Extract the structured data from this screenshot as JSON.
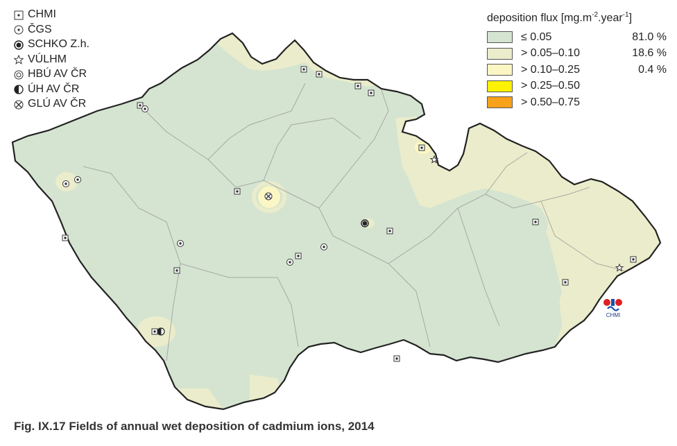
{
  "station_legend": [
    {
      "label": "CHMI",
      "icon": "square-dot-icon"
    },
    {
      "label": "ČGS",
      "icon": "circle-dot-icon"
    },
    {
      "label": "SCHKO Z.h.",
      "icon": "filled-circle-icon"
    },
    {
      "label": "VÚLHM",
      "icon": "star-icon"
    },
    {
      "label": "HBÚ AV ČR",
      "icon": "double-circle-icon"
    },
    {
      "label": "ÚH AV ČR",
      "icon": "half-circle-icon"
    },
    {
      "label": "GLÚ AV ČR",
      "icon": "crossed-circle-icon"
    }
  ],
  "flux_legend": {
    "title_prefix": "deposition flux [mg.m",
    "title_exp1": "-2",
    "title_mid": ".year",
    "title_exp2": "-1",
    "title_suffix": "]",
    "classes": [
      {
        "label": "≤ 0.05",
        "pct": "81.0 %",
        "color": "#d4e4d0"
      },
      {
        "label": "> 0.05–0.10",
        "pct": "18.6 %",
        "color": "#eaeccb"
      },
      {
        "label": "> 0.10–0.25",
        "pct": "0.4 %",
        "color": "#fbf6c3"
      },
      {
        "label": "> 0.25–0.50",
        "pct": "",
        "color": "#fff200"
      },
      {
        "label": "> 0.50–0.75",
        "pct": "",
        "color": "#f7a21b"
      }
    ]
  },
  "logo": {
    "text": "CHMI"
  },
  "caption": "Fig. IX.17  Fields of annual wet deposition of cadmium ions, 2014"
}
